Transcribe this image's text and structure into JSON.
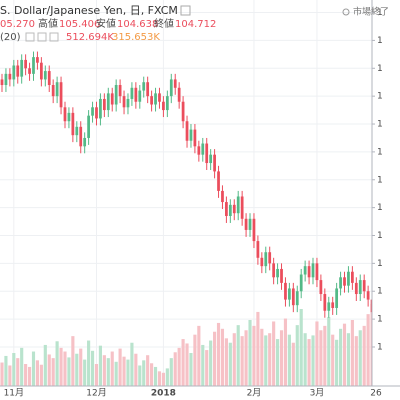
{
  "header": {
    "title": "S. Dollar/Japanese Yen, 日, FXCM",
    "open_text": "05.270",
    "high_label": "高値",
    "low_label": "安値",
    "close_label": "終値",
    "ma_period": "(20)",
    "volume_text": "512.694K",
    "ma_text": "315.653K",
    "status": "市場終了"
  },
  "chart_data": {
    "type": "candlestick",
    "categories": [
      null,
      null,
      null,
      "11月",
      null,
      null,
      null,
      null,
      null,
      null,
      null,
      null,
      null,
      null,
      null,
      null,
      null,
      null,
      null,
      null,
      null,
      null,
      null,
      null,
      "12月",
      null,
      null,
      null,
      null,
      null,
      null,
      null,
      null,
      null,
      null,
      null,
      null,
      null,
      null,
      null,
      null,
      "2018",
      null,
      null,
      null,
      null,
      null,
      null,
      null,
      null,
      null,
      null,
      null,
      null,
      null,
      null,
      null,
      null,
      null,
      null,
      null,
      null,
      null,
      null,
      "2月",
      null,
      null,
      null,
      null,
      null,
      null,
      null,
      null,
      null,
      null,
      null,
      null,
      null,
      null,
      null,
      "3月",
      null,
      null,
      null,
      null,
      null,
      null,
      null,
      null,
      null,
      null,
      null,
      null,
      null,
      null,
      "26"
    ],
    "open": [
      113.6,
      113.4,
      113.8,
      113.6,
      114.1,
      113.7,
      114.3,
      114.0,
      113.8,
      114.4,
      114.2,
      113.6,
      113.9,
      113.4,
      113.0,
      113.5,
      112.6,
      112.1,
      112.4,
      111.6,
      111.9,
      111.2,
      111.5,
      112.3,
      112.6,
      112.2,
      112.9,
      112.5,
      113.1,
      112.7,
      113.4,
      113.0,
      112.6,
      112.9,
      113.3,
      112.8,
      113.2,
      113.5,
      113.0,
      112.7,
      113.1,
      112.8,
      112.5,
      113.0,
      113.6,
      113.3,
      112.8,
      112.1,
      111.4,
      111.8,
      111.2,
      110.9,
      111.3,
      110.6,
      110.9,
      110.3,
      109.6,
      109.2,
      108.7,
      109.1,
      108.8,
      109.4,
      108.6,
      108.2,
      108.6,
      107.8,
      107.2,
      106.9,
      107.4,
      107.0,
      106.5,
      106.8,
      106.3,
      105.7,
      106.1,
      105.5,
      106.0,
      106.6,
      106.9,
      106.5,
      107.0,
      106.4,
      105.9,
      105.3,
      105.6,
      105.4,
      106.1,
      106.5,
      106.2,
      106.7,
      106.3,
      105.9,
      106.4,
      106.0,
      105.7,
      105.27
    ],
    "high": [
      113.8,
      114.0,
      114.0,
      114.3,
      114.3,
      114.5,
      114.5,
      114.2,
      114.6,
      114.6,
      114.4,
      114.1,
      114.1,
      113.6,
      113.7,
      113.7,
      112.8,
      112.6,
      112.6,
      112.1,
      112.1,
      111.7,
      112.5,
      112.8,
      112.8,
      113.1,
      113.1,
      113.3,
      113.3,
      113.6,
      113.6,
      113.2,
      113.1,
      113.5,
      113.5,
      113.4,
      113.7,
      113.7,
      113.2,
      113.3,
      113.3,
      113.0,
      113.2,
      113.8,
      113.8,
      113.5,
      113.0,
      112.3,
      112.0,
      112.0,
      111.4,
      111.5,
      111.5,
      111.1,
      111.1,
      110.5,
      109.8,
      109.4,
      109.3,
      109.3,
      109.6,
      109.6,
      108.8,
      108.8,
      108.8,
      108.0,
      107.4,
      107.6,
      107.6,
      107.2,
      107.0,
      107.0,
      106.5,
      106.3,
      106.3,
      106.2,
      106.8,
      107.1,
      107.1,
      107.2,
      107.2,
      106.6,
      106.1,
      105.8,
      105.8,
      106.3,
      106.7,
      106.7,
      106.9,
      106.9,
      106.5,
      106.6,
      106.6,
      106.2,
      105.9,
      105.406
    ],
    "low": [
      113.15,
      113.15,
      113.35,
      113.35,
      113.45,
      113.45,
      113.75,
      113.55,
      113.55,
      113.95,
      113.35,
      113.35,
      113.15,
      112.75,
      112.75,
      112.35,
      111.85,
      111.85,
      111.35,
      111.35,
      110.95,
      110.95,
      111.25,
      112.05,
      111.95,
      111.95,
      112.25,
      112.25,
      112.45,
      112.45,
      112.75,
      112.35,
      112.35,
      112.65,
      112.55,
      112.55,
      112.95,
      112.75,
      112.45,
      112.45,
      112.55,
      112.25,
      112.25,
      112.75,
      113.05,
      112.55,
      111.85,
      111.15,
      111.15,
      110.95,
      110.65,
      110.65,
      110.35,
      110.35,
      110.05,
      109.35,
      108.95,
      108.45,
      108.45,
      108.55,
      108.55,
      108.35,
      107.95,
      107.95,
      107.55,
      106.95,
      106.65,
      106.65,
      106.75,
      106.25,
      106.25,
      106.05,
      105.45,
      105.45,
      105.25,
      105.25,
      105.75,
      106.35,
      106.25,
      106.25,
      106.15,
      105.65,
      105.05,
      105.05,
      105.15,
      105.15,
      105.85,
      105.95,
      105.95,
      106.05,
      105.65,
      105.65,
      105.75,
      105.45,
      105.0,
      104.638
    ],
    "close": [
      113.4,
      113.8,
      113.6,
      114.1,
      113.7,
      114.3,
      114.0,
      113.8,
      114.4,
      114.2,
      113.6,
      113.9,
      113.4,
      113.0,
      113.5,
      112.6,
      112.1,
      112.4,
      111.6,
      111.9,
      111.2,
      111.5,
      112.3,
      112.6,
      112.2,
      112.9,
      112.5,
      113.1,
      112.7,
      113.4,
      113.0,
      112.6,
      112.9,
      113.3,
      112.8,
      113.2,
      113.5,
      113.0,
      112.7,
      113.1,
      112.8,
      112.5,
      113.0,
      113.6,
      113.3,
      112.8,
      112.1,
      111.4,
      111.8,
      111.2,
      110.9,
      111.3,
      110.6,
      110.9,
      110.3,
      109.6,
      109.2,
      108.7,
      109.1,
      108.8,
      109.4,
      108.6,
      108.2,
      108.6,
      107.8,
      107.2,
      106.9,
      107.4,
      107.0,
      106.5,
      106.8,
      106.3,
      105.7,
      106.1,
      105.5,
      106.0,
      106.6,
      106.9,
      106.5,
      107.0,
      106.4,
      105.9,
      105.3,
      105.6,
      105.4,
      106.1,
      106.5,
      106.2,
      106.7,
      106.3,
      105.9,
      106.4,
      106.0,
      105.7,
      105.25,
      104.712
    ],
    "volume": [
      320,
      410,
      280,
      450,
      380,
      520,
      300,
      260,
      470,
      350,
      290,
      560,
      430,
      380,
      610,
      520,
      470,
      390,
      680,
      440,
      510,
      360,
      620,
      480,
      300,
      550,
      420,
      380,
      470,
      330,
      510,
      400,
      360,
      590,
      440,
      280,
      350,
      420,
      310,
      260,
      200,
      180,
      240,
      380,
      460,
      520,
      640,
      580,
      450,
      700,
      820,
      560,
      490,
      620,
      740,
      860,
      780,
      650,
      590,
      720,
      830,
      680,
      760,
      900,
      820,
      1010,
      780,
      690,
      720,
      880,
      640,
      760,
      920,
      700,
      590,
      830,
      1050,
      720,
      640,
      690,
      880,
      760,
      820,
      940,
      700,
      630,
      780,
      850,
      720,
      900,
      680,
      760,
      820,
      980,
      1120,
      512.694
    ],
    "up_color": "#53b987",
    "down_color": "#eb4d5c",
    "up_volume_color": "#b9e3cd",
    "down_volume_color": "#f6c1c6",
    "ylim": [
      102.6,
      116.45
    ],
    "yticks": [
      {
        "value": 104,
        "label": "1"
      },
      {
        "value": 105,
        "label": "1"
      },
      {
        "value": 106,
        "label": "1"
      },
      {
        "value": 107,
        "label": "1"
      },
      {
        "value": 108,
        "label": "1"
      },
      {
        "value": 109,
        "label": "1"
      },
      {
        "value": 110,
        "label": "1"
      },
      {
        "value": 111,
        "label": "1"
      },
      {
        "value": 112,
        "label": "1"
      },
      {
        "value": 113,
        "label": "1"
      },
      {
        "value": 114,
        "label": "1"
      },
      {
        "value": 115,
        "label": "1"
      },
      {
        "value": 116,
        "label": "1"
      }
    ],
    "vlim": [
      0,
      1500
    ],
    "grid": true
  }
}
